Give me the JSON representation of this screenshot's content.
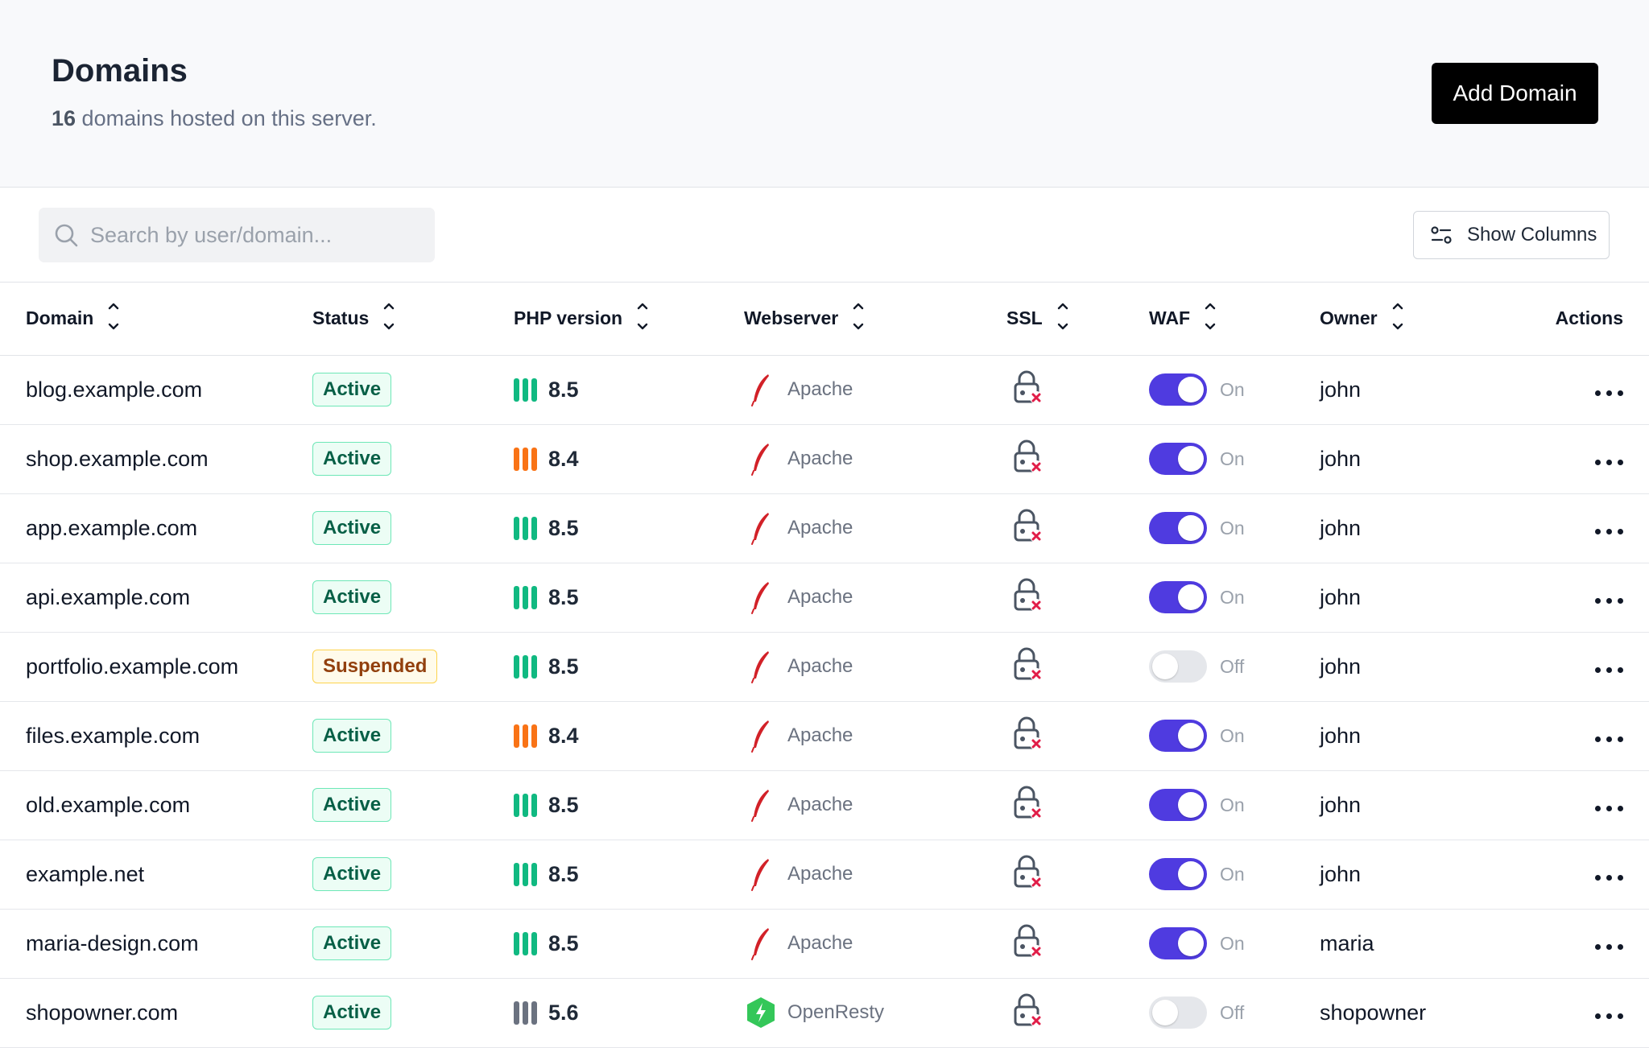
{
  "header": {
    "title": "Domains",
    "count": "16",
    "subtitle_rest": " domains hosted on this server.",
    "add_button": "Add Domain"
  },
  "toolbar": {
    "search_placeholder": "Search by user/domain...",
    "show_columns": "Show Columns"
  },
  "columns": {
    "domain": "Domain",
    "status": "Status",
    "php": "PHP version",
    "webserver": "Webserver",
    "ssl": "SSL",
    "waf": "WAF",
    "owner": "Owner",
    "actions": "Actions"
  },
  "colors": {
    "php_current": "#10b981",
    "php_previous": "#f97316",
    "php_legacy": "#6b7280",
    "toggle_on": "#4f3be0",
    "apache": "#d22128",
    "openresty": "#34c759"
  },
  "rows": [
    {
      "domain": "blog.example.com",
      "status": "Active",
      "status_type": "active",
      "php": "8.5",
      "php_color": "#10b981",
      "webserver": "Apache",
      "web_icon": "apache-feather-icon",
      "ssl_icon": "lock-x-icon",
      "waf": "On",
      "waf_on": true,
      "owner": "john"
    },
    {
      "domain": "shop.example.com",
      "status": "Active",
      "status_type": "active",
      "php": "8.4",
      "php_color": "#f97316",
      "webserver": "Apache",
      "web_icon": "apache-feather-icon",
      "ssl_icon": "lock-x-icon",
      "waf": "On",
      "waf_on": true,
      "owner": "john"
    },
    {
      "domain": "app.example.com",
      "status": "Active",
      "status_type": "active",
      "php": "8.5",
      "php_color": "#10b981",
      "webserver": "Apache",
      "web_icon": "apache-feather-icon",
      "ssl_icon": "lock-x-icon",
      "waf": "On",
      "waf_on": true,
      "owner": "john"
    },
    {
      "domain": "api.example.com",
      "status": "Active",
      "status_type": "active",
      "php": "8.5",
      "php_color": "#10b981",
      "webserver": "Apache",
      "web_icon": "apache-feather-icon",
      "ssl_icon": "lock-x-icon",
      "waf": "On",
      "waf_on": true,
      "owner": "john"
    },
    {
      "domain": "portfolio.example.com",
      "status": "Suspended",
      "status_type": "suspended",
      "php": "8.5",
      "php_color": "#10b981",
      "webserver": "Apache",
      "web_icon": "apache-feather-icon",
      "ssl_icon": "lock-x-icon",
      "waf": "Off",
      "waf_on": false,
      "owner": "john"
    },
    {
      "domain": "files.example.com",
      "status": "Active",
      "status_type": "active",
      "php": "8.4",
      "php_color": "#f97316",
      "webserver": "Apache",
      "web_icon": "apache-feather-icon",
      "ssl_icon": "lock-x-icon",
      "waf": "On",
      "waf_on": true,
      "owner": "john"
    },
    {
      "domain": "old.example.com",
      "status": "Active",
      "status_type": "active",
      "php": "8.5",
      "php_color": "#10b981",
      "webserver": "Apache",
      "web_icon": "apache-feather-icon",
      "ssl_icon": "lock-x-icon",
      "waf": "On",
      "waf_on": true,
      "owner": "john"
    },
    {
      "domain": "example.net",
      "status": "Active",
      "status_type": "active",
      "php": "8.5",
      "php_color": "#10b981",
      "webserver": "Apache",
      "web_icon": "apache-feather-icon",
      "ssl_icon": "lock-x-icon",
      "waf": "On",
      "waf_on": true,
      "owner": "john"
    },
    {
      "domain": "maria-design.com",
      "status": "Active",
      "status_type": "active",
      "php": "8.5",
      "php_color": "#10b981",
      "webserver": "Apache",
      "web_icon": "apache-feather-icon",
      "ssl_icon": "lock-x-icon",
      "waf": "On",
      "waf_on": true,
      "owner": "maria"
    },
    {
      "domain": "shopowner.com",
      "status": "Active",
      "status_type": "active",
      "php": "5.6",
      "php_color": "#6b7280",
      "webserver": "OpenResty",
      "web_icon": "openresty-hexagon-icon",
      "ssl_icon": "lock-x-icon",
      "waf": "Off",
      "waf_on": false,
      "owner": "shopowner"
    }
  ]
}
